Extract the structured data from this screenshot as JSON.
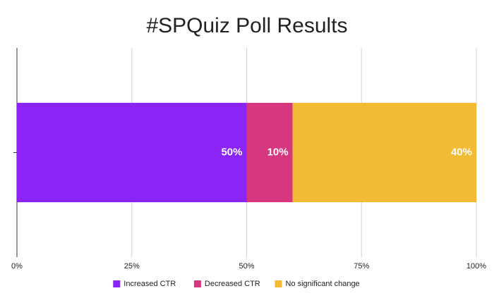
{
  "chart_data": {
    "type": "stacked-bar-horizontal",
    "title": "#SPQuiz Poll Results",
    "categories": [
      null
    ],
    "series": [
      {
        "name": "Increased CTR",
        "color": "#8a24f7",
        "values": [
          50
        ],
        "value_labels": [
          "50%"
        ]
      },
      {
        "name": "Decreased CTR",
        "color": "#d6377e",
        "values": [
          10
        ],
        "value_labels": [
          "10%"
        ]
      },
      {
        "name": "No significant change",
        "color": "#f3bb33",
        "values": [
          40
        ],
        "value_labels": [
          "40%"
        ]
      }
    ],
    "xlim": [
      0,
      100
    ],
    "xticks": [
      {
        "value": 0,
        "label": "0%"
      },
      {
        "value": 25,
        "label": "25%"
      },
      {
        "value": 50,
        "label": "50%"
      },
      {
        "value": 75,
        "label": "75%"
      },
      {
        "value": 100,
        "label": "100%"
      }
    ],
    "grid": true,
    "legend": "bottom"
  }
}
